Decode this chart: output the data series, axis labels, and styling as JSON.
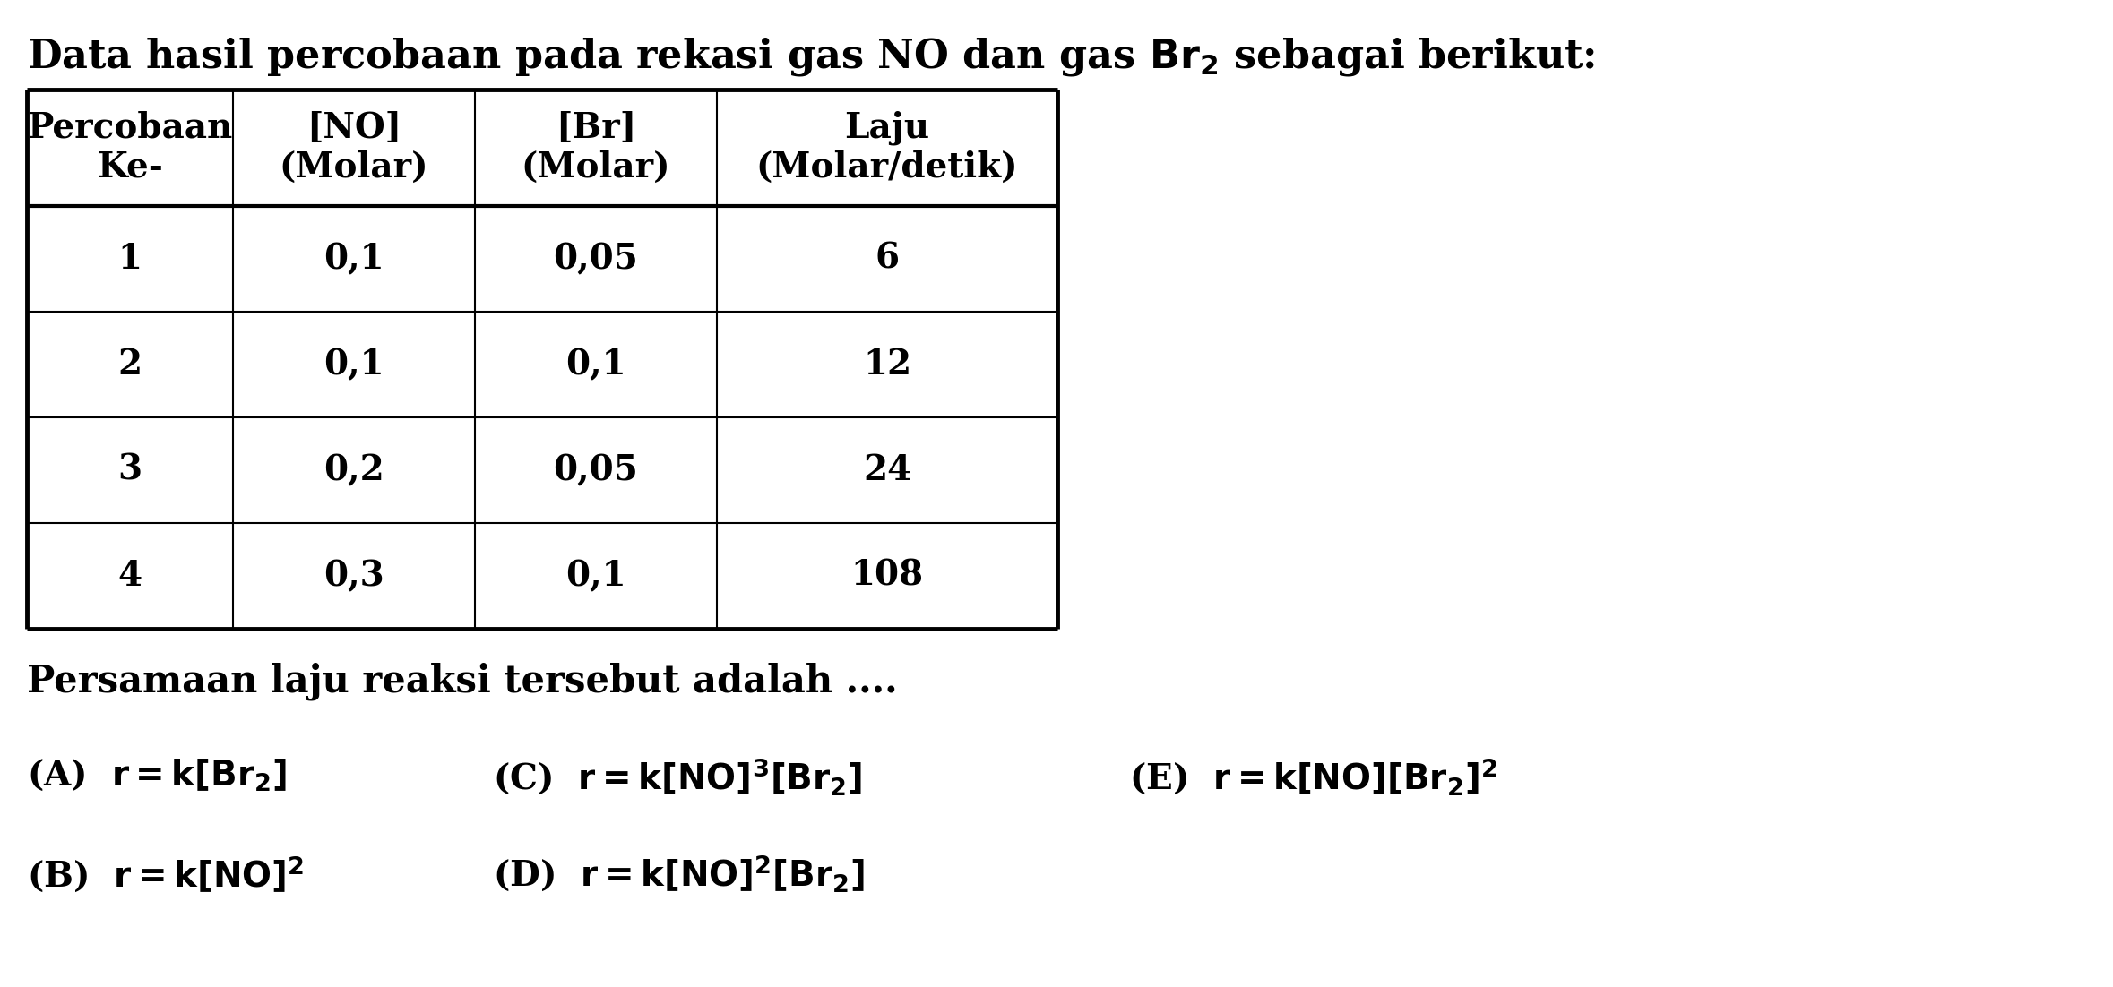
{
  "bg_color": "#ffffff",
  "text_color": "#000000",
  "line_color": "#000000",
  "title_part1": "Data hasil percobaan pada rekasi gas NO dan gas ",
  "title_br2": "$\\mathbf{Br_2}$",
  "title_part2": " sebagai berikut:",
  "header_col1": "Percobaan\nKe-",
  "header_col2": "[NO]\n(Molar)",
  "header_col3": "[Br]\n(Molar)",
  "header_col4": "Laju\n(Molar/detik)",
  "rows": [
    [
      "1",
      "0,1",
      "0,05",
      "6"
    ],
    [
      "2",
      "0,1",
      "0,1",
      "12"
    ],
    [
      "3",
      "0,2",
      "0,05",
      "24"
    ],
    [
      "4",
      "0,3",
      "0,1",
      "108"
    ]
  ],
  "question": "Persamaan laju reaksi tersebut adalah ....",
  "font_size_title": 32,
  "font_size_table": 28,
  "font_size_question": 30,
  "font_size_options": 28
}
